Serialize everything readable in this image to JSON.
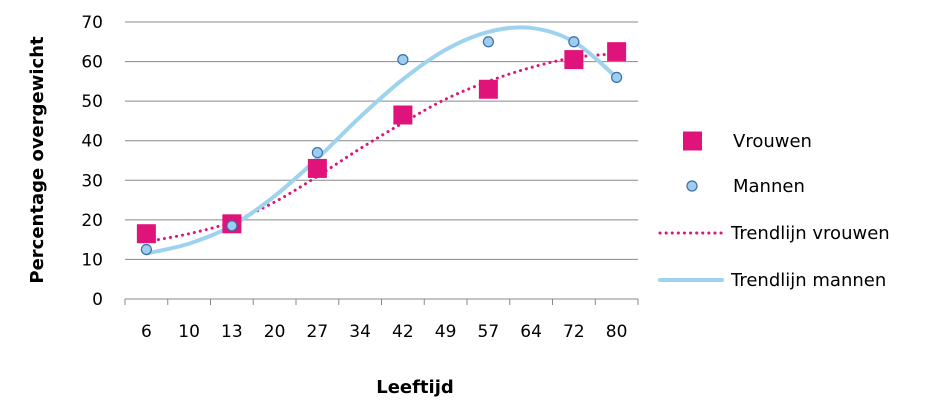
{
  "chart_data": {
    "type": "scatter",
    "categories": [
      "6",
      "10",
      "13",
      "20",
      "27",
      "34",
      "42",
      "49",
      "57",
      "64",
      "72",
      "80"
    ],
    "xlabel": "Leeftijd",
    "ylabel": "Percentage overgewicht",
    "ylim": [
      0,
      70
    ],
    "yticks": [
      0,
      10,
      20,
      30,
      40,
      50,
      60,
      70
    ],
    "grid": true,
    "legend_position": "right",
    "series": [
      {
        "name": "Vrouwen",
        "marker": "square",
        "color": "#e0137a",
        "points": [
          {
            "x": "6",
            "y": 16.5
          },
          {
            "x": "13",
            "y": 19
          },
          {
            "x": "27",
            "y": 33
          },
          {
            "x": "42",
            "y": 46.5
          },
          {
            "x": "57",
            "y": 53
          },
          {
            "x": "72",
            "y": 60.5
          },
          {
            "x": "80",
            "y": 62.5
          }
        ]
      },
      {
        "name": "Mannen",
        "marker": "circle",
        "color": "#9dcdf0",
        "points": [
          {
            "x": "6",
            "y": 12.5
          },
          {
            "x": "13",
            "y": 18.5
          },
          {
            "x": "27",
            "y": 37
          },
          {
            "x": "42",
            "y": 60.5
          },
          {
            "x": "57",
            "y": 65
          },
          {
            "x": "72",
            "y": 65
          },
          {
            "x": "80",
            "y": 56
          }
        ]
      },
      {
        "name": "Trendlijn vrouwen",
        "line_style": "dotted",
        "color": "#e0137a",
        "points": [
          {
            "x": "6",
            "y": 14.5
          },
          {
            "x": "10",
            "y": 16.5
          },
          {
            "x": "13",
            "y": 19.5
          },
          {
            "x": "20",
            "y": 24.5
          },
          {
            "x": "27",
            "y": 31
          },
          {
            "x": "34",
            "y": 38
          },
          {
            "x": "42",
            "y": 44.5
          },
          {
            "x": "49",
            "y": 50.5
          },
          {
            "x": "57",
            "y": 55
          },
          {
            "x": "64",
            "y": 58.5
          },
          {
            "x": "72",
            "y": 61
          },
          {
            "x": "80",
            "y": 62
          }
        ]
      },
      {
        "name": "Trendlijn mannen",
        "line_style": "solid",
        "color": "#9dd3ef",
        "points": [
          {
            "x": "6",
            "y": 11.5
          },
          {
            "x": "10",
            "y": 14
          },
          {
            "x": "13",
            "y": 18.5
          },
          {
            "x": "20",
            "y": 26
          },
          {
            "x": "27",
            "y": 35.5
          },
          {
            "x": "34",
            "y": 46
          },
          {
            "x": "42",
            "y": 55.5
          },
          {
            "x": "49",
            "y": 63
          },
          {
            "x": "57",
            "y": 67.5
          },
          {
            "x": "64",
            "y": 68.5
          },
          {
            "x": "72",
            "y": 65
          },
          {
            "x": "80",
            "y": 56
          }
        ]
      }
    ]
  }
}
